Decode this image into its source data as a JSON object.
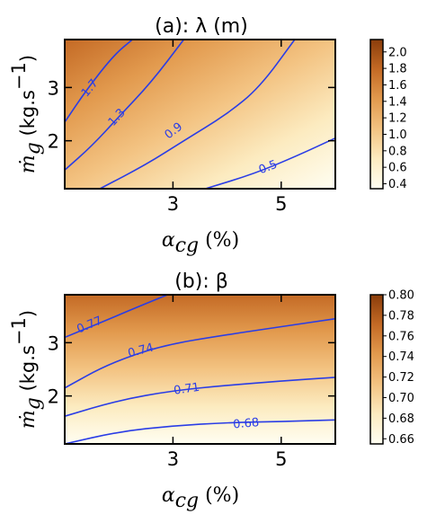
{
  "chart_data": [
    {
      "type": "contour",
      "title": "(a): λ (m)",
      "xlabel": "α_cg (%)",
      "ylabel": "ṁ_g (kg.s⁻¹)",
      "xlim": [
        1,
        6
      ],
      "ylim": [
        1.1,
        3.9
      ],
      "x_ticks": [
        3,
        5
      ],
      "x_tick_labels": [
        "3",
        "5"
      ],
      "y_ticks": [
        2,
        3
      ],
      "y_tick_labels": [
        "2",
        "3"
      ],
      "colorbar": {
        "range": [
          0.34,
          2.15
        ],
        "ticks": [
          0.4,
          0.6,
          0.8,
          1.0,
          1.2,
          1.4,
          1.6,
          1.8,
          2.0
        ],
        "tick_labels": [
          "0.4",
          "0.6",
          "0.8",
          "1.0",
          "1.2",
          "1.4",
          "1.6",
          "1.8",
          "2.0"
        ],
        "colormap": [
          "#fffef2",
          "#fcebc0",
          "#f3c382",
          "#e29a4e",
          "#c46a25",
          "#8a3d0b"
        ]
      },
      "contours": [
        {
          "level": "1.7",
          "points": [
            [
              1,
              2.35
            ],
            [
              1.4,
              2.95
            ],
            [
              1.9,
              3.6
            ],
            [
              2.25,
              3.9
            ]
          ],
          "label_at": [
            1.45,
            3.0
          ]
        },
        {
          "level": "1.3",
          "points": [
            [
              1,
              1.45
            ],
            [
              1.5,
              1.9
            ],
            [
              2.0,
              2.45
            ],
            [
              2.6,
              3.1
            ],
            [
              3.2,
              3.9
            ]
          ],
          "label_at": [
            1.95,
            2.45
          ]
        },
        {
          "level": "0.9",
          "points": [
            [
              1.65,
              1.1
            ],
            [
              2.5,
              1.55
            ],
            [
              3.2,
              2.0
            ],
            [
              4.0,
              2.5
            ],
            [
              4.6,
              3.0
            ],
            [
              5.25,
              3.9
            ]
          ],
          "label_at": [
            3.0,
            2.2
          ]
        },
        {
          "level": "0.5",
          "points": [
            [
              3.6,
              1.1
            ],
            [
              4.5,
              1.38
            ],
            [
              5.3,
              1.72
            ],
            [
              6,
              2.05
            ]
          ],
          "label_at": [
            4.75,
            1.52
          ]
        }
      ],
      "line_color": "#2a3de6"
    },
    {
      "type": "contour",
      "title": "(b): β",
      "xlabel": "α_cg (%)",
      "ylabel": "ṁ_g (kg.s⁻¹)",
      "xlim": [
        1,
        6
      ],
      "ylim": [
        1.1,
        3.9
      ],
      "x_ticks": [
        3,
        5
      ],
      "x_tick_labels": [
        "3",
        "5"
      ],
      "y_ticks": [
        2,
        3
      ],
      "y_tick_labels": [
        "2",
        "3"
      ],
      "colorbar": {
        "range": [
          0.655,
          0.8
        ],
        "ticks": [
          0.66,
          0.68,
          0.7,
          0.72,
          0.74,
          0.76,
          0.78,
          0.8
        ],
        "tick_labels": [
          "0.66",
          "0.68",
          "0.70",
          "0.72",
          "0.74",
          "0.76",
          "0.78",
          "0.80"
        ],
        "colormap": [
          "#fffef2",
          "#fcebc0",
          "#f3c382",
          "#e29a4e",
          "#c46a25",
          "#8a3d0b"
        ]
      },
      "contours": [
        {
          "level": "0.77",
          "points": [
            [
              1,
              3.1
            ],
            [
              1.6,
              3.35
            ],
            [
              2.3,
              3.65
            ],
            [
              2.9,
              3.9
            ]
          ],
          "label_at": [
            1.45,
            3.35
          ]
        },
        {
          "level": "0.74",
          "points": [
            [
              1,
              2.15
            ],
            [
              1.8,
              2.6
            ],
            [
              2.8,
              2.95
            ],
            [
              4.0,
              3.15
            ],
            [
              5.0,
              3.3
            ],
            [
              6,
              3.45
            ]
          ],
          "label_at": [
            2.4,
            2.87
          ]
        },
        {
          "level": "0.71",
          "points": [
            [
              1,
              1.62
            ],
            [
              2.0,
              1.92
            ],
            [
              3.0,
              2.1
            ],
            [
              4.0,
              2.2
            ],
            [
              5.0,
              2.28
            ],
            [
              6,
              2.35
            ]
          ],
          "label_at": [
            3.25,
            2.15
          ]
        },
        {
          "level": "0.68",
          "points": [
            [
              1,
              1.1
            ],
            [
              2.0,
              1.33
            ],
            [
              3.0,
              1.44
            ],
            [
              4.0,
              1.5
            ],
            [
              5.0,
              1.52
            ],
            [
              6,
              1.55
            ]
          ],
          "label_at": [
            4.35,
            1.5
          ]
        }
      ],
      "line_color": "#2a3de6"
    }
  ]
}
